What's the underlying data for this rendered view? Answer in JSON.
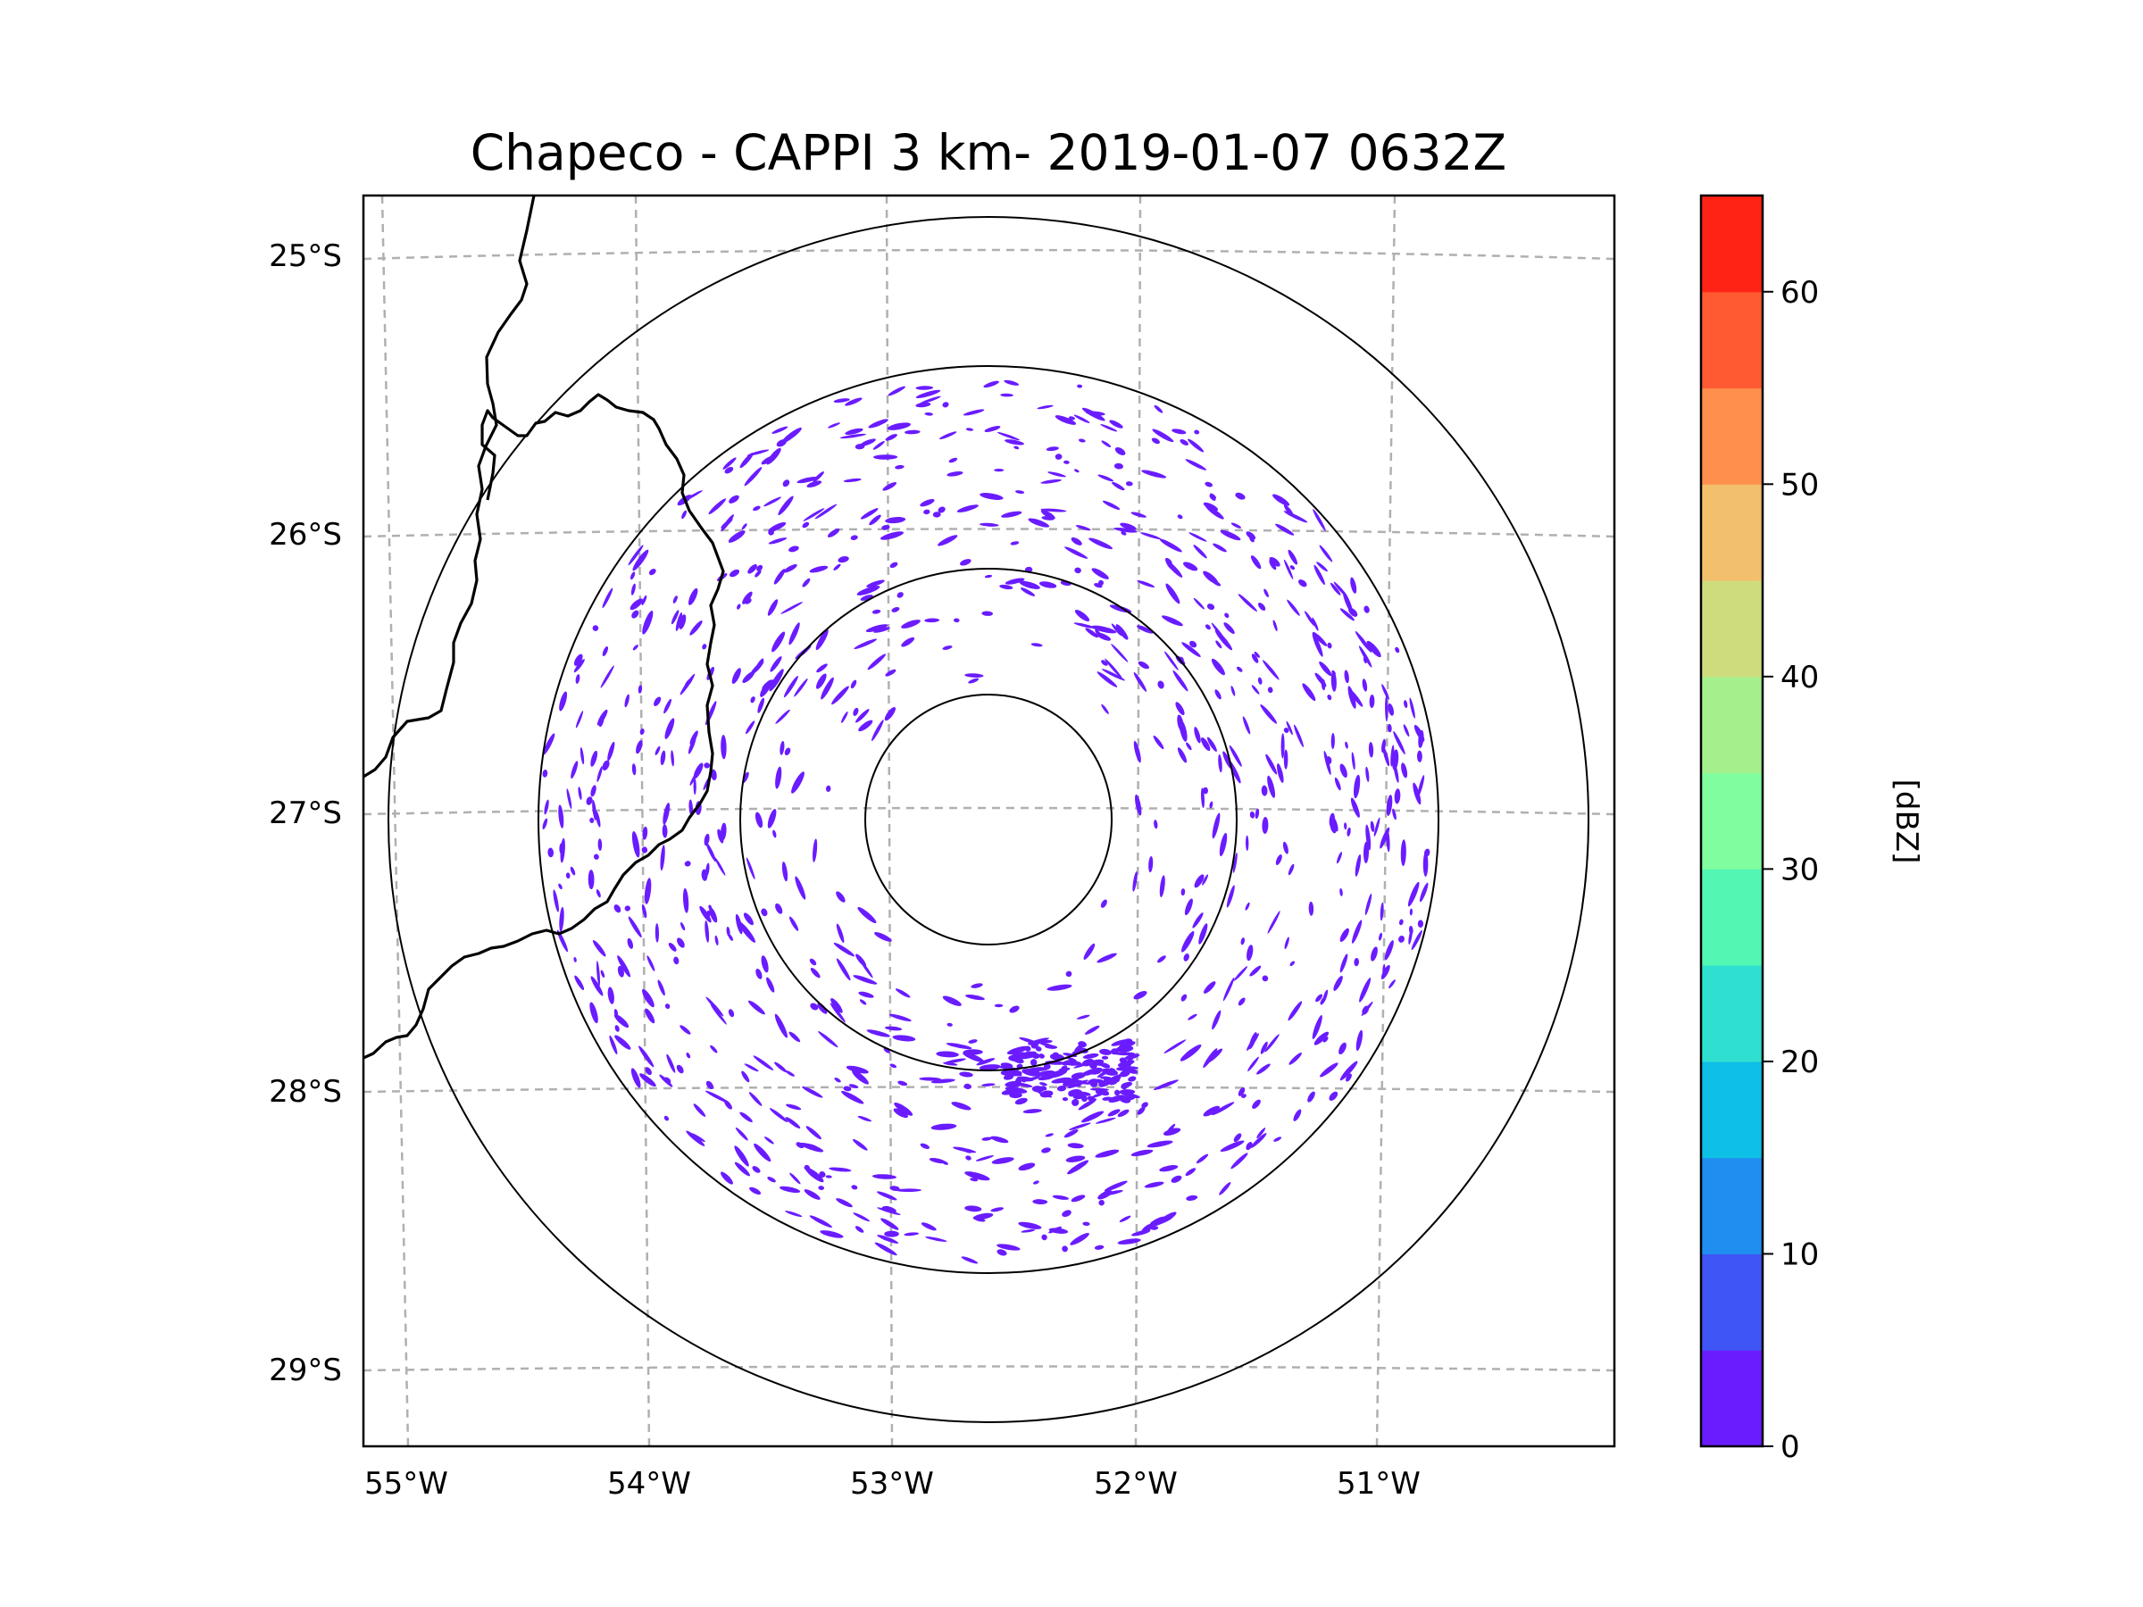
{
  "title": "Chapeco - CAPPI 3 km- 2019-01-07 0632Z",
  "map": {
    "lat_labels": [
      "25°S",
      "26°S",
      "27°S",
      "28°S",
      "29°S"
    ],
    "lon_labels": [
      "55°W",
      "54°W",
      "53°W",
      "52°W",
      "51°W"
    ],
    "radar_site": "Chapeco",
    "range_rings": 4
  },
  "colorbar": {
    "label": "[dBZ]",
    "ticks": [
      "0",
      "10",
      "20",
      "30",
      "40",
      "50",
      "60"
    ],
    "min": 0,
    "max": 65,
    "step": 5,
    "colors": [
      "#6a1cff",
      "#3f55f5",
      "#1f8ef0",
      "#0ebfe6",
      "#2fe0d0",
      "#52f7b4",
      "#80fd9e",
      "#a5f08c",
      "#cfdc7e",
      "#f2c06c",
      "#ff8f4d",
      "#ff5a32",
      "#ff2316"
    ]
  }
}
